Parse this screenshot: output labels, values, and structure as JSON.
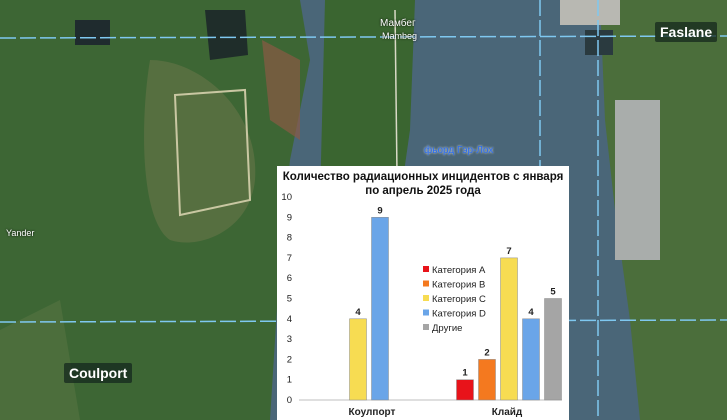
{
  "map": {
    "labels": {
      "coulport": "Coulport",
      "faslane": "Faslane",
      "mambeg_upper": "Мамбег",
      "mambeg_lower": "Mambeg",
      "yander": "Yander",
      "fjord": "фьорд Гэр-Лох"
    },
    "colors": {
      "water": "#4f6f82",
      "land": "#3f6b37",
      "grid": "#7fc8f0"
    }
  },
  "chart_data": {
    "type": "bar",
    "title_line1": "Количество радиационных инцидентов с января",
    "title_line2": "по апрель 2025 года",
    "categories": [
      "Коулпорт",
      "Клайд"
    ],
    "ylim": [
      0,
      10
    ],
    "yticks": [
      "0",
      "1",
      "2",
      "3",
      "4",
      "5",
      "6",
      "7",
      "8",
      "9",
      "10"
    ],
    "series": [
      {
        "name": "Категория A",
        "color": "#e8131a",
        "values": [
          null,
          1
        ]
      },
      {
        "name": "Категория B",
        "color": "#f4791f",
        "values": [
          null,
          2
        ]
      },
      {
        "name": "Категория C",
        "color": "#f7dc52",
        "values": [
          4,
          7
        ]
      },
      {
        "name": "Категория D",
        "color": "#6aa5e8",
        "values": [
          9,
          4
        ]
      },
      {
        "name": "Другие",
        "color": "#a5a5a5",
        "values": [
          null,
          5
        ]
      }
    ],
    "legend_position": "center-right",
    "grid": false
  }
}
